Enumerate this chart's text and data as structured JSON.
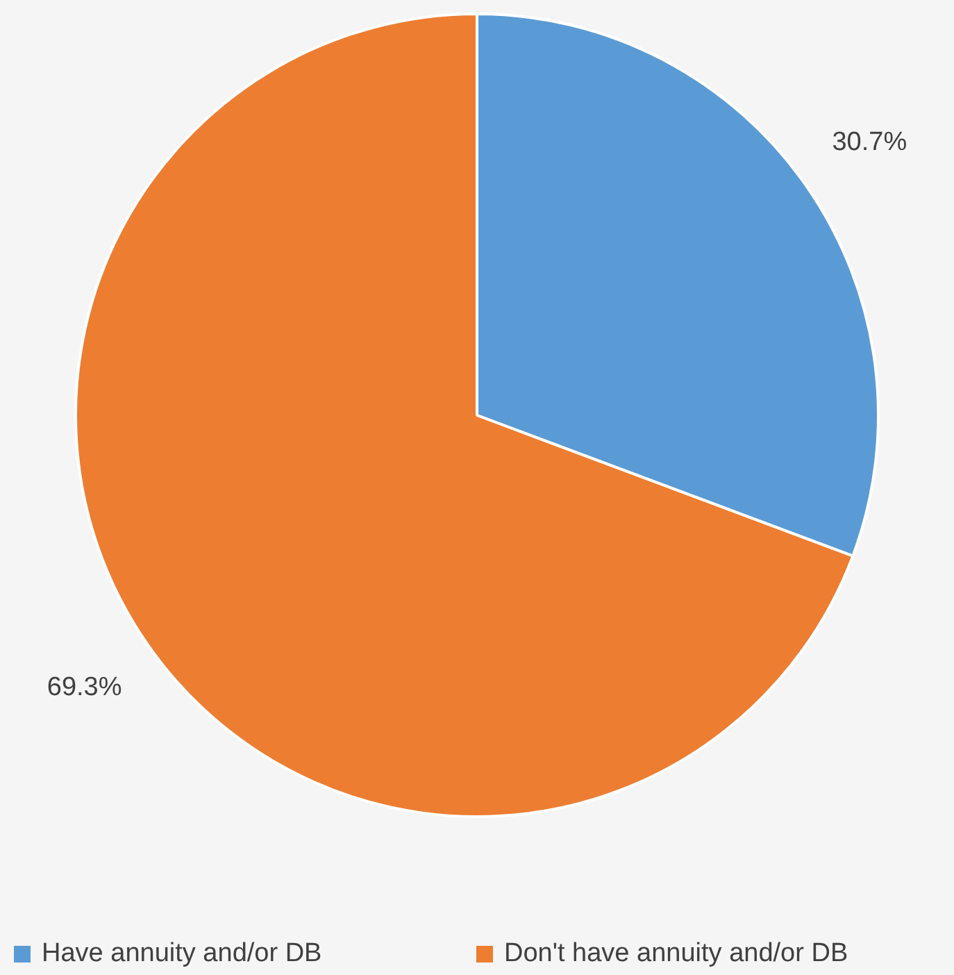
{
  "chart_data": {
    "type": "pie",
    "categories": [
      "Have annuity and/or DB",
      "Don't have annuity and/or DB"
    ],
    "values": [
      30.7,
      69.3
    ],
    "colors": [
      "#5b9bd5",
      "#ed7d31"
    ],
    "value_labels": [
      "30.7%",
      "69.3%"
    ],
    "legend": "bottom"
  }
}
